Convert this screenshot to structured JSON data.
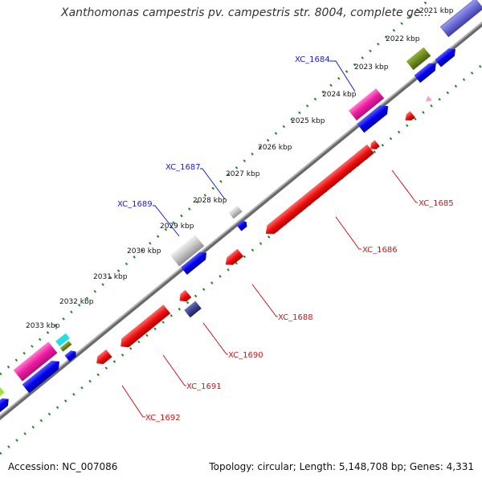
{
  "title": "Xanthomonas campestris pv. campestris str. 8004, complete ge...",
  "accession_label": "Accession: NC_007086",
  "summary": "Topology: circular; Length: 5,148,708 bp; Genes: 4,331",
  "ruler_ticks": [
    "2021 kbp",
    "2022 kbp",
    "2023 kbp",
    "2024 kbp",
    "2025 kbp",
    "2026 kbp",
    "2027 kbp",
    "2028 kbp",
    "2029 kbp",
    "2030 kbp",
    "2031 kbp",
    "2032 kbp",
    "2033 kbp"
  ],
  "gene_labels": {
    "XC_1684": "XC_1684",
    "XC_1685": "XC_1685",
    "XC_1686": "XC_1686",
    "XC_1687": "XC_1687",
    "XC_1688": "XC_1688",
    "XC_1689": "XC_1689",
    "XC_1690": "XC_1690",
    "XC_1691": "XC_1691",
    "XC_1692": "XC_1692"
  },
  "colors": {
    "forward_label": "#1a1adb",
    "reverse_label": "#d41414",
    "dotted_ring": "#1a8a1a",
    "backbone": "#888888"
  }
}
